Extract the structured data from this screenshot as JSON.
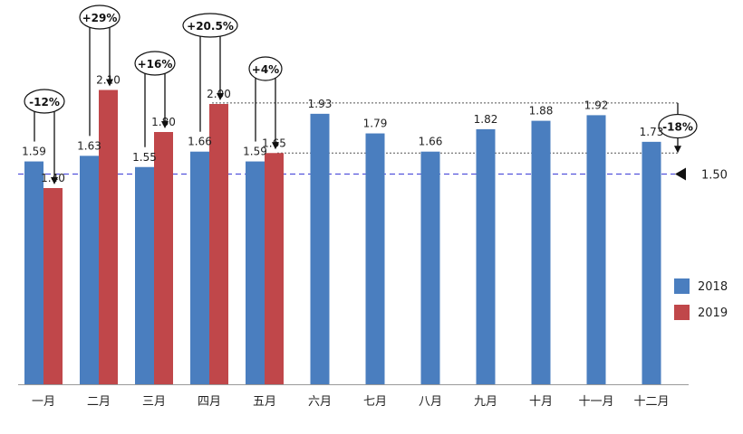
{
  "chart_data": {
    "type": "bar",
    "categories": [
      "一月",
      "二月",
      "三月",
      "四月",
      "五月",
      "六月",
      "七月",
      "八月",
      "九月",
      "十月",
      "十一月",
      "十二月"
    ],
    "series": [
      {
        "name": "2018",
        "color": "#4a7ebf",
        "values": [
          1.59,
          1.63,
          1.55,
          1.66,
          1.59,
          1.93,
          1.79,
          1.66,
          1.82,
          1.88,
          1.92,
          1.73
        ]
      },
      {
        "name": "2019",
        "color": "#c0474a",
        "values": [
          1.4,
          2.1,
          1.8,
          2.0,
          1.65,
          null,
          null,
          null,
          null,
          null,
          null,
          null
        ]
      }
    ],
    "value_labels": {
      "2018": [
        "1.59",
        "1.63",
        "1.55",
        "1.66",
        "1.59",
        "1.93",
        "1.79",
        "1.66",
        "1.82",
        "1.88",
        "1.92",
        "1.73"
      ],
      "2019": [
        "1.40",
        "2.10",
        "1.80",
        "2.00",
        "1.65"
      ]
    },
    "ylim": [
      0,
      2.2
    ],
    "reference_line": {
      "value": 1.5,
      "label": "1.50",
      "color": "#3b3bd6"
    },
    "change_annotations": [
      {
        "label": "-12%"
      },
      {
        "label": "+29%"
      },
      {
        "label": "+16%"
      },
      {
        "label": "+20.5%"
      },
      {
        "label": "+4%"
      }
    ],
    "range_annotation": {
      "label": "-18%"
    },
    "grid": false,
    "legend_position": "right"
  }
}
